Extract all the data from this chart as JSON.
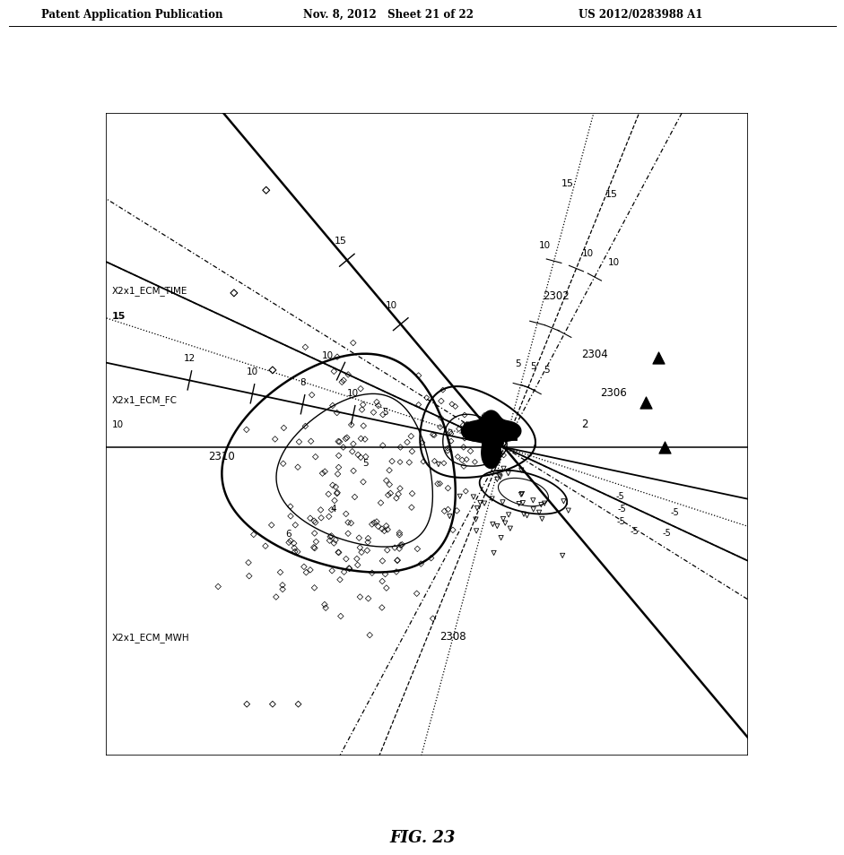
{
  "title": "FIG. 23",
  "header_left": "Patent Application Publication",
  "header_center": "Nov. 8, 2012   Sheet 21 of 22",
  "header_right": "US 2012/0283988 A1",
  "background_color": "#ffffff"
}
